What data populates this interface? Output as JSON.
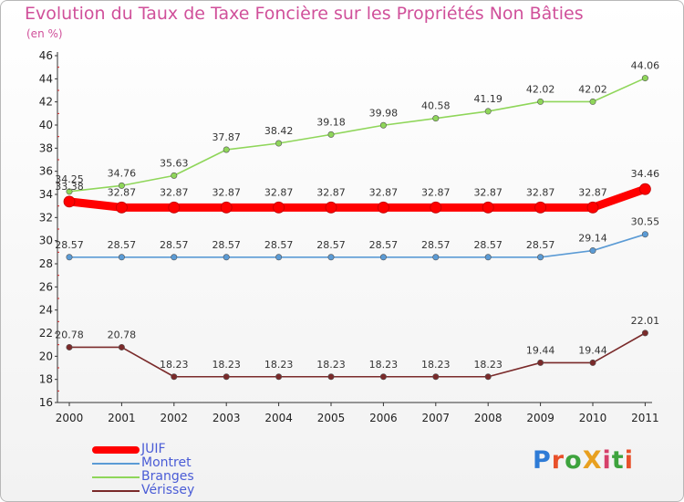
{
  "title": "Evolution du Taux de Taxe Foncière sur les Propriétés Non Bâties",
  "unit_label": "(en %)",
  "logo_text": "ProXiti",
  "chart_data": {
    "type": "line",
    "x": [
      "2000",
      "2001",
      "2002",
      "2003",
      "2004",
      "2005",
      "2006",
      "2007",
      "2008",
      "2009",
      "2010",
      "2011"
    ],
    "ylim": [
      16,
      46
    ],
    "yticks": [
      16,
      18,
      20,
      22,
      24,
      26,
      28,
      30,
      32,
      34,
      36,
      38,
      40,
      42,
      44,
      46
    ],
    "grid": false,
    "legend_position": "bottom-left",
    "series": [
      {
        "name": "JUIF",
        "color": "#ff0000",
        "values": [
          33.38,
          32.87,
          32.87,
          32.87,
          32.87,
          32.87,
          32.87,
          32.87,
          32.87,
          32.87,
          32.87,
          34.46
        ],
        "labels": [
          "33.38",
          "32.87",
          "32.87",
          "32.87",
          "32.87",
          "32.87",
          "32.87",
          "32.87",
          "32.87",
          "32.87",
          "32.87",
          "34.46"
        ]
      },
      {
        "name": "Montret",
        "color": "#5b9bd5",
        "values": [
          28.57,
          28.57,
          28.57,
          28.57,
          28.57,
          28.57,
          28.57,
          28.57,
          28.57,
          28.57,
          29.14,
          30.55
        ],
        "labels": [
          "28.57",
          "28.57",
          "28.57",
          "28.57",
          "28.57",
          "28.57",
          "28.57",
          "28.57",
          "28.57",
          "28.57",
          "29.14",
          "30.55"
        ]
      },
      {
        "name": "Branges",
        "color": "#8fd65a",
        "values": [
          34.25,
          34.76,
          35.63,
          37.87,
          38.42,
          39.18,
          39.98,
          40.58,
          41.19,
          42.02,
          42.02,
          44.06
        ],
        "labels": [
          "34.25",
          "34.76",
          "35.63",
          "37.87",
          "38.42",
          "39.18",
          "39.98",
          "40.58",
          "41.19",
          "42.02",
          "42.02",
          "44.06"
        ]
      },
      {
        "name": "Vérissey",
        "color": "#7a2a2a",
        "values": [
          20.78,
          20.78,
          18.23,
          18.23,
          18.23,
          18.23,
          18.23,
          18.23,
          18.23,
          19.44,
          19.44,
          22.01
        ],
        "labels": [
          "20.78",
          "20.78",
          "18.23",
          "18.23",
          "18.23",
          "18.23",
          "18.23",
          "18.23",
          "18.23",
          "19.44",
          "19.44",
          "22.01"
        ]
      }
    ]
  }
}
